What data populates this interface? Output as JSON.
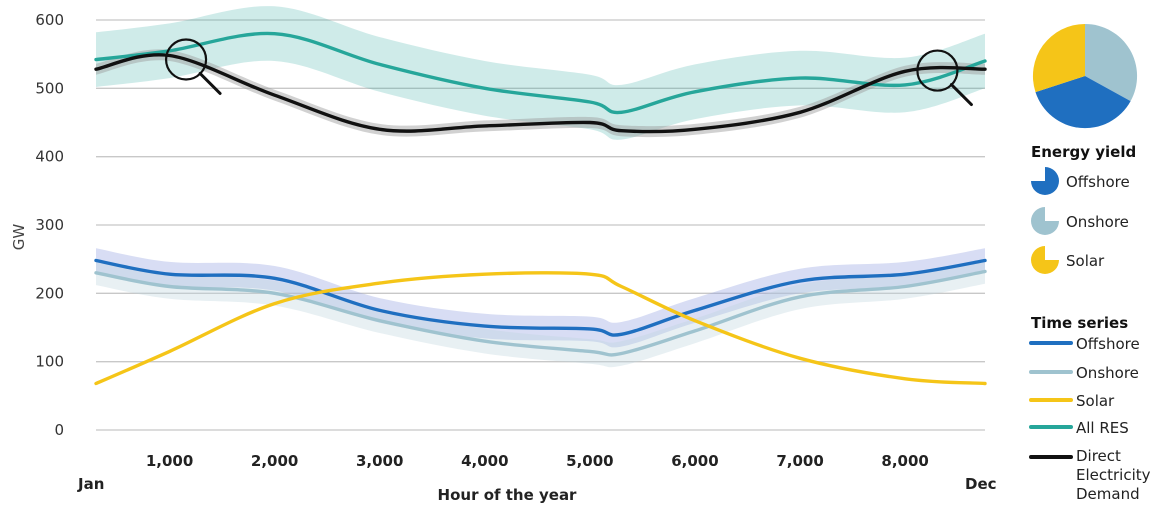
{
  "chart_data": {
    "type": "line",
    "xlabel": "Hour of the year",
    "ylabel": "GW",
    "xlim": [
      300,
      8760
    ],
    "ylim": [
      0,
      600
    ],
    "y_ticks": [
      0,
      100,
      200,
      300,
      400,
      500,
      600
    ],
    "x_ticks": [
      1000,
      2000,
      3000,
      4000,
      5000,
      6000,
      7000,
      8000
    ],
    "x_tick_labels": [
      "1,000",
      "2,000",
      "3,000",
      "4,000",
      "5,000",
      "6,000",
      "7,000",
      "8,000"
    ],
    "x_edge_labels": {
      "start": "Jan",
      "end": "Dec"
    },
    "grid": "horizontal",
    "x": [
      300,
      1000,
      2000,
      3000,
      4000,
      5000,
      5300,
      6000,
      7000,
      8000,
      8760
    ],
    "series": [
      {
        "name": "Offshore",
        "color": "#1f6fc0",
        "values": [
          248,
          228,
          222,
          175,
          152,
          148,
          140,
          175,
          218,
          228,
          248
        ],
        "band": 18
      },
      {
        "name": "Onshore",
        "color": "#9fc3cf",
        "values": [
          230,
          210,
          200,
          160,
          130,
          115,
          112,
          145,
          195,
          210,
          232
        ],
        "band": 18
      },
      {
        "name": "Solar",
        "color": "#f5c518",
        "values": [
          68,
          115,
          185,
          215,
          228,
          228,
          210,
          160,
          105,
          75,
          68
        ],
        "band": 0
      },
      {
        "name": "All RES",
        "color": "#26a69a",
        "values": [
          542,
          555,
          580,
          535,
          500,
          480,
          465,
          495,
          515,
          505,
          540
        ],
        "band": 40
      },
      {
        "name": "Direct Electricity Demand",
        "color": "#111111",
        "values": [
          528,
          548,
          490,
          440,
          445,
          450,
          438,
          440,
          465,
          525,
          528
        ],
        "band": 8
      }
    ],
    "energy_yield_pie": [
      {
        "name": "Offshore",
        "value": 0.37,
        "color": "#1f6fc0"
      },
      {
        "name": "Onshore",
        "value": 0.33,
        "color": "#9fc3cf"
      },
      {
        "name": "Solar",
        "value": 0.3,
        "color": "#f5c518"
      }
    ],
    "magnifier_icons_at_hours": [
      1100,
      8250
    ]
  },
  "legend": {
    "energy_yield_title": "Energy yield",
    "energy_yield_items": [
      "Offshore",
      "Onshore",
      "Solar"
    ],
    "time_series_title": "Time series",
    "time_series_items": [
      "Offshore",
      "Onshore",
      "Solar",
      "All RES"
    ],
    "demand_lines": [
      "Direct",
      "Electricity",
      "Demand"
    ]
  }
}
